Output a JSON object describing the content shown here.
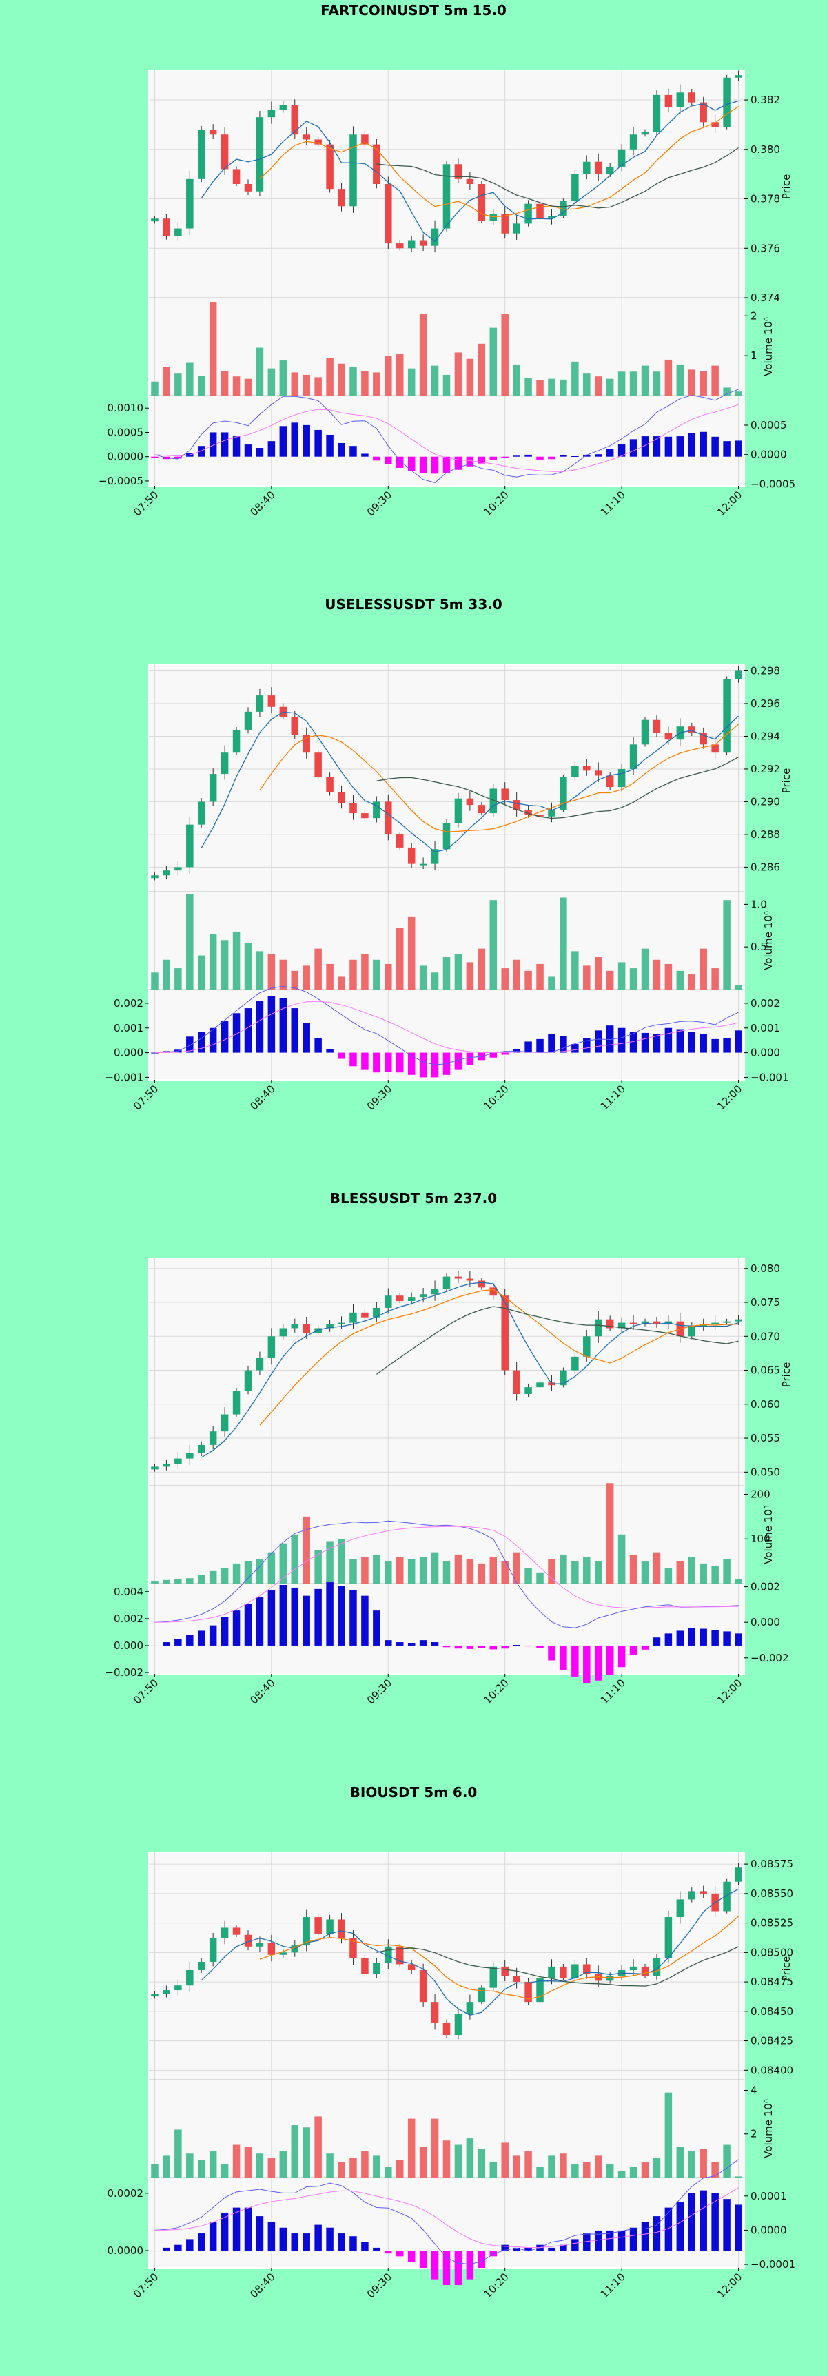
{
  "colors": {
    "page_background": "#8effc2",
    "panel_background": "#f8f8f8",
    "grid": "#d9d9d9",
    "up_candle": "#1fa97b",
    "down_candle": "#ec4646",
    "up_volume": "#4fbf97",
    "down_volume": "#ef6a6a",
    "ma_fast": "#1f6fb4",
    "ma_mid": "#ff8000",
    "ma_slow": "#3a5a4a",
    "macd_hist_pos": "#0a0ad8",
    "macd_hist_neg": "#ff00ff",
    "macd_line": "#5a5aff",
    "signal_line": "#ff77ff"
  },
  "chart_data": [
    {
      "type": "candlestick",
      "title": "FARTCOINUSDT 5m 15.0",
      "ylabel": "Price",
      "volume_label": "Volume  10⁶",
      "x_ticks": [
        "07:50",
        "08:40",
        "09:30",
        "10:20",
        "11:10",
        "12:00"
      ],
      "price_ylim": [
        0.374,
        0.3832
      ],
      "price_ticks": [
        "0.374",
        "0.376",
        "0.378",
        "0.380",
        "0.382"
      ],
      "volume_ylim": [
        0,
        2.35
      ],
      "volume_ticks": [
        "1",
        "2"
      ],
      "macd_left_ylim": [
        -0.0006,
        0.00123
      ],
      "macd_left_ticks": [
        "−0.0005",
        "0.0000",
        "0.0005",
        "0.0010"
      ],
      "macd_right_ylim": [
        -0.00053,
        0.00098
      ],
      "macd_right_ticks": [
        "−0.0005",
        "0.0000",
        "0.0005"
      ],
      "price_path": [
        0.3772,
        0.3765,
        0.3768,
        0.3788,
        0.3808,
        0.3806,
        0.3792,
        0.3786,
        0.3783,
        0.3813,
        0.3816,
        0.3818,
        0.3806,
        0.3804,
        0.3802,
        0.3784,
        0.3777,
        0.3806,
        0.3802,
        0.3786,
        0.3762,
        0.376,
        0.3763,
        0.3761,
        0.3768,
        0.3794,
        0.3788,
        0.3786,
        0.3771,
        0.3774,
        0.3766,
        0.377,
        0.3778,
        0.3772,
        0.3773,
        0.3779,
        0.379,
        0.3795,
        0.379,
        0.3793,
        0.38,
        0.3806,
        0.3807,
        0.3822,
        0.3817,
        0.3823,
        0.3819,
        0.3811,
        0.3809,
        0.3829,
        0.383
      ],
      "volume": [
        0.35,
        0.72,
        0.55,
        0.82,
        0.5,
        2.35,
        0.62,
        0.48,
        0.42,
        1.2,
        0.68,
        0.88,
        0.58,
        0.52,
        0.46,
        0.95,
        0.8,
        0.72,
        0.62,
        0.58,
        1.0,
        1.05,
        0.68,
        2.05,
        0.75,
        0.52,
        1.08,
        0.92,
        1.3,
        1.7,
        2.05,
        0.78,
        0.45,
        0.38,
        0.42,
        0.4,
        0.85,
        0.55,
        0.48,
        0.42,
        0.6,
        0.6,
        0.75,
        0.6,
        0.9,
        0.78,
        0.65,
        0.62,
        0.75,
        0.2,
        0.1
      ],
      "macd_hist": [
        -3e-05,
        -5e-05,
        -4e-05,
        8e-05,
        0.00022,
        0.0005,
        0.0005,
        0.00042,
        0.00025,
        0.00018,
        0.00032,
        0.00063,
        0.0007,
        0.00065,
        0.00055,
        0.00045,
        0.00028,
        0.00022,
        6e-05,
        -8e-05,
        -0.00016,
        -0.00023,
        -0.00029,
        -0.00033,
        -0.00035,
        -0.00033,
        -0.00027,
        -0.0002,
        -0.00014,
        -6e-05,
        -2e-05,
        2e-05,
        4e-05,
        -6e-05,
        -5e-05,
        3e-05,
        1e-05,
        4e-05,
        5e-05,
        0.00016,
        0.00026,
        0.00036,
        0.00042,
        0.00042,
        0.00041,
        0.00042,
        0.00048,
        0.00051,
        0.00041,
        0.00032,
        0.00033
      ]
    },
    {
      "type": "candlestick",
      "title": "USELESSUSDT 5m 33.0",
      "ylabel": "Price",
      "volume_label": "Volume  10⁶",
      "x_ticks": [
        "07:50",
        "08:40",
        "09:30",
        "10:20",
        "11:10",
        "12:00"
      ],
      "price_ylim": [
        0.2845,
        0.2984
      ],
      "price_ticks": [
        "0.286",
        "0.288",
        "0.290",
        "0.292",
        "0.294",
        "0.296",
        "0.298"
      ],
      "volume_ylim": [
        0,
        1.1
      ],
      "volume_ticks": [
        "0.5",
        "1.0"
      ],
      "macd_left_ylim": [
        -0.0011,
        0.0025
      ],
      "macd_left_ticks": [
        "−0.001",
        "0.000",
        "0.001",
        "0.002"
      ],
      "macd_right_ylim": [
        -0.0011,
        0.0025
      ],
      "macd_right_ticks": [
        "−0.001",
        "0.000",
        "0.001",
        "0.002"
      ],
      "price_path": [
        0.2855,
        0.2858,
        0.286,
        0.2886,
        0.29,
        0.2917,
        0.293,
        0.2944,
        0.2955,
        0.2965,
        0.2958,
        0.2952,
        0.2941,
        0.293,
        0.2915,
        0.2906,
        0.2899,
        0.2893,
        0.289,
        0.29,
        0.288,
        0.2872,
        0.2862,
        0.2862,
        0.2871,
        0.2887,
        0.2902,
        0.2898,
        0.2893,
        0.2908,
        0.2901,
        0.2895,
        0.2892,
        0.2891,
        0.2895,
        0.2915,
        0.2922,
        0.2919,
        0.2916,
        0.2909,
        0.292,
        0.2935,
        0.295,
        0.2942,
        0.2938,
        0.2946,
        0.2942,
        0.2935,
        0.293,
        0.2975,
        0.298
      ],
      "volume": [
        0.2,
        0.35,
        0.25,
        1.12,
        0.4,
        0.65,
        0.58,
        0.68,
        0.55,
        0.45,
        0.42,
        0.35,
        0.22,
        0.28,
        0.48,
        0.3,
        0.15,
        0.35,
        0.42,
        0.35,
        0.3,
        0.72,
        0.85,
        0.28,
        0.2,
        0.38,
        0.42,
        0.32,
        0.48,
        1.05,
        0.25,
        0.35,
        0.22,
        0.3,
        0.15,
        1.08,
        0.45,
        0.28,
        0.38,
        0.22,
        0.32,
        0.25,
        0.48,
        0.35,
        0.3,
        0.22,
        0.18,
        0.48,
        0.25,
        1.05,
        0.05
      ],
      "macd_hist": [
        0.0,
        6e-05,
        0.00012,
        0.00065,
        0.00085,
        0.001,
        0.0013,
        0.0016,
        0.0018,
        0.0021,
        0.0023,
        0.0022,
        0.0018,
        0.0012,
        0.0006,
        0.00015,
        -0.00025,
        -0.00055,
        -0.0007,
        -0.0008,
        -0.00078,
        -0.0008,
        -0.0009,
        -0.001,
        -0.001,
        -0.0009,
        -0.0007,
        -0.0005,
        -0.0003,
        -0.0002,
        -8e-05,
        0.00015,
        0.00045,
        0.00055,
        0.00075,
        0.00068,
        0.00035,
        0.0006,
        0.0009,
        0.0011,
        0.001,
        0.00085,
        0.0008,
        0.00075,
        0.001,
        0.00095,
        0.00085,
        0.00075,
        0.00055,
        0.0006,
        0.0009
      ]
    },
    {
      "type": "candlestick",
      "title": "BLESSUSDT 5m 237.0",
      "ylabel": "Price",
      "volume_label": "Volume  10³",
      "x_ticks": [
        "07:50",
        "08:40",
        "09:30",
        "10:20",
        "11:10",
        "12:00"
      ],
      "price_ylim": [
        0.048,
        0.0815
      ],
      "price_ticks": [
        "0.050",
        "0.055",
        "0.060",
        "0.065",
        "0.070",
        "0.075",
        "0.080"
      ],
      "volume_ylim": [
        0,
        210
      ],
      "volume_ticks": [
        "100",
        "200"
      ],
      "macd_left_ylim": [
        -0.0021,
        0.0045
      ],
      "macd_left_ticks": [
        "−0.002",
        "0.000",
        "0.002",
        "0.004"
      ],
      "macd_right_ylim": [
        -0.0029,
        0.0021
      ],
      "macd_right_ticks": [
        "−0.002",
        "0.000",
        "0.002"
      ],
      "price_path": [
        0.0508,
        0.0512,
        0.052,
        0.0528,
        0.054,
        0.056,
        0.0585,
        0.062,
        0.065,
        0.0668,
        0.07,
        0.0712,
        0.0718,
        0.0705,
        0.0712,
        0.0718,
        0.072,
        0.0735,
        0.0728,
        0.0742,
        0.076,
        0.0752,
        0.0758,
        0.0762,
        0.077,
        0.0788,
        0.0785,
        0.0782,
        0.0772,
        0.076,
        0.065,
        0.0615,
        0.0625,
        0.0632,
        0.0628,
        0.065,
        0.067,
        0.07,
        0.0725,
        0.0712,
        0.072,
        0.0718,
        0.0722,
        0.0718,
        0.0722,
        0.07,
        0.0715,
        0.0718,
        0.072,
        0.0722,
        0.0725
      ],
      "volume": [
        5,
        8,
        10,
        12,
        20,
        28,
        35,
        45,
        50,
        55,
        70,
        90,
        110,
        150,
        75,
        95,
        100,
        55,
        60,
        65,
        50,
        60,
        55,
        60,
        70,
        50,
        65,
        55,
        45,
        60,
        50,
        70,
        35,
        25,
        55,
        65,
        50,
        60,
        50,
        225,
        110,
        65,
        50,
        70,
        35,
        50,
        60,
        45,
        40,
        55,
        10
      ],
      "macd_hist": [
        0.0,
        0.00025,
        0.0005,
        0.0008,
        0.0011,
        0.0015,
        0.0021,
        0.0026,
        0.0031,
        0.0036,
        0.0041,
        0.0045,
        0.0043,
        0.0037,
        0.0042,
        0.0047,
        0.0044,
        0.0041,
        0.0037,
        0.0026,
        0.0004,
        0.00025,
        0.0002,
        0.0004,
        0.00025,
        -0.00012,
        -0.00022,
        -0.00025,
        -0.00018,
        -0.00028,
        -0.00022,
        5e-05,
        -6e-05,
        -0.00018,
        -0.0011,
        -0.0018,
        -0.0023,
        -0.0028,
        -0.0026,
        -0.0022,
        -0.0016,
        -0.0007,
        -0.0003,
        0.0006,
        0.0009,
        0.0011,
        0.0013,
        0.00125,
        0.00115,
        0.00105,
        0.0009
      ]
    },
    {
      "type": "candlestick",
      "title": "BIOUSDT 5m 6.0",
      "ylabel": "Price",
      "volume_label": "Volume  10⁶",
      "x_ticks": [
        "07:50",
        "08:40",
        "09:30",
        "10:20",
        "11:10",
        "12:00"
      ],
      "price_ylim": [
        0.08392,
        0.08585
      ],
      "price_ticks": [
        "0.08400",
        "0.08425",
        "0.08450",
        "0.08475",
        "0.08500",
        "0.08525",
        "0.08550",
        "0.08575"
      ],
      "volume_ylim": [
        0,
        4.3
      ],
      "volume_ticks": [
        "2",
        "4"
      ],
      "macd_left_ylim": [
        -6e-05,
        0.00025
      ],
      "macd_left_ticks": [
        "0.0000",
        "0.0002"
      ],
      "macd_right_ylim": [
        -0.00011,
        0.00015
      ],
      "macd_right_ticks": [
        "−0.0001",
        "0.0000",
        "0.0001"
      ],
      "price_path": [
        0.08465,
        0.08468,
        0.08472,
        0.08485,
        0.08492,
        0.08512,
        0.08521,
        0.08515,
        0.08505,
        0.08508,
        0.08498,
        0.085,
        0.08506,
        0.0853,
        0.08516,
        0.08528,
        0.08512,
        0.08495,
        0.08482,
        0.08491,
        0.08505,
        0.0849,
        0.08485,
        0.08458,
        0.0844,
        0.0843,
        0.08448,
        0.08458,
        0.0847,
        0.08488,
        0.0848,
        0.08475,
        0.08458,
        0.08478,
        0.08488,
        0.08478,
        0.0849,
        0.08482,
        0.08476,
        0.0848,
        0.08485,
        0.08488,
        0.0848,
        0.08495,
        0.0853,
        0.08545,
        0.08552,
        0.0855,
        0.08535,
        0.0856,
        0.08572
      ],
      "volume": [
        0.6,
        1.0,
        2.2,
        1.1,
        0.8,
        1.2,
        0.6,
        1.5,
        1.4,
        1.1,
        0.9,
        1.2,
        2.4,
        2.3,
        2.8,
        1.1,
        0.7,
        0.9,
        1.2,
        1.0,
        0.5,
        0.8,
        2.7,
        1.4,
        2.7,
        1.7,
        1.5,
        1.8,
        1.3,
        0.7,
        1.6,
        1.0,
        1.2,
        0.5,
        1.0,
        1.1,
        0.6,
        0.7,
        1.0,
        0.6,
        0.3,
        0.5,
        0.7,
        0.9,
        3.9,
        1.4,
        1.2,
        1.3,
        0.7,
        1.5,
        0.05
      ],
      "macd_hist": [
        0.0,
        1e-05,
        2e-05,
        4e-05,
        6e-05,
        0.0001,
        0.00013,
        0.00015,
        0.00015,
        0.00012,
        0.0001,
        8e-05,
        6e-05,
        6e-05,
        9e-05,
        8e-05,
        6e-05,
        5e-05,
        3e-05,
        1e-05,
        -1e-05,
        -2e-05,
        -4e-05,
        -6e-05,
        -0.0001,
        -0.00012,
        -0.00012,
        -0.0001,
        -6e-05,
        -2e-05,
        2e-05,
        1e-05,
        1e-05,
        2e-05,
        1e-05,
        2e-05,
        4e-05,
        6e-05,
        7e-05,
        7e-05,
        7e-05,
        8e-05,
        0.0001,
        0.00012,
        0.00015,
        0.00017,
        0.0002,
        0.00021,
        0.0002,
        0.00018,
        0.00016
      ]
    }
  ]
}
